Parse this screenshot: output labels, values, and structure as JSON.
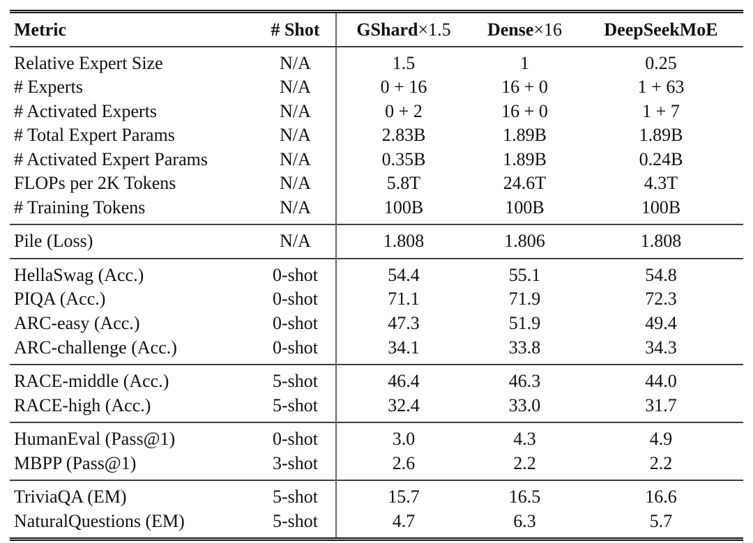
{
  "page": {
    "background": "#ffffff",
    "text_color": "#111111",
    "single_rule_color": "#3d3d3d",
    "double_rule_color": "#161616",
    "vertical_rule_color": "#6b6b6b"
  },
  "chart_data": {
    "type": "table",
    "columns": [
      {
        "label": "Metric",
        "suffix": ""
      },
      {
        "label": "# Shot",
        "suffix": ""
      },
      {
        "label": "GShard",
        "suffix": "×1.5"
      },
      {
        "label": "Dense",
        "suffix": "×16"
      },
      {
        "label": "DeepSeekMoE",
        "suffix": ""
      }
    ],
    "sections": [
      {
        "rows": [
          [
            "Relative Expert Size",
            "N/A",
            "1.5",
            "1",
            "0.25"
          ],
          [
            "# Experts",
            "N/A",
            "0 + 16",
            "16 + 0",
            "1 + 63"
          ],
          [
            "# Activated Experts",
            "N/A",
            "0 + 2",
            "16 + 0",
            "1 + 7"
          ],
          [
            "# Total Expert Params",
            "N/A",
            "2.83B",
            "1.89B",
            "1.89B"
          ],
          [
            "# Activated Expert Params",
            "N/A",
            "0.35B",
            "1.89B",
            "0.24B"
          ],
          [
            "FLOPs per 2K Tokens",
            "N/A",
            "5.8T",
            "24.6T",
            "4.3T"
          ],
          [
            "# Training Tokens",
            "N/A",
            "100B",
            "100B",
            "100B"
          ]
        ]
      },
      {
        "rows": [
          [
            "Pile (Loss)",
            "N/A",
            "1.808",
            "1.806",
            "1.808"
          ]
        ]
      },
      {
        "rows": [
          [
            "HellaSwag (Acc.)",
            "0-shot",
            "54.4",
            "55.1",
            "54.8"
          ],
          [
            "PIQA (Acc.)",
            "0-shot",
            "71.1",
            "71.9",
            "72.3"
          ],
          [
            "ARC-easy (Acc.)",
            "0-shot",
            "47.3",
            "51.9",
            "49.4"
          ],
          [
            "ARC-challenge (Acc.)",
            "0-shot",
            "34.1",
            "33.8",
            "34.3"
          ]
        ]
      },
      {
        "rows": [
          [
            "RACE-middle (Acc.)",
            "5-shot",
            "46.4",
            "46.3",
            "44.0"
          ],
          [
            "RACE-high (Acc.)",
            "5-shot",
            "32.4",
            "33.0",
            "31.7"
          ]
        ]
      },
      {
        "rows": [
          [
            "HumanEval (Pass@1)",
            "0-shot",
            "3.0",
            "4.3",
            "4.9"
          ],
          [
            "MBPP (Pass@1)",
            "3-shot",
            "2.6",
            "2.2",
            "2.2"
          ]
        ]
      },
      {
        "rows": [
          [
            "TriviaQA (EM)",
            "5-shot",
            "15.7",
            "16.5",
            "16.6"
          ],
          [
            "NaturalQuestions (EM)",
            "5-shot",
            "4.7",
            "6.3",
            "5.7"
          ]
        ]
      }
    ]
  }
}
